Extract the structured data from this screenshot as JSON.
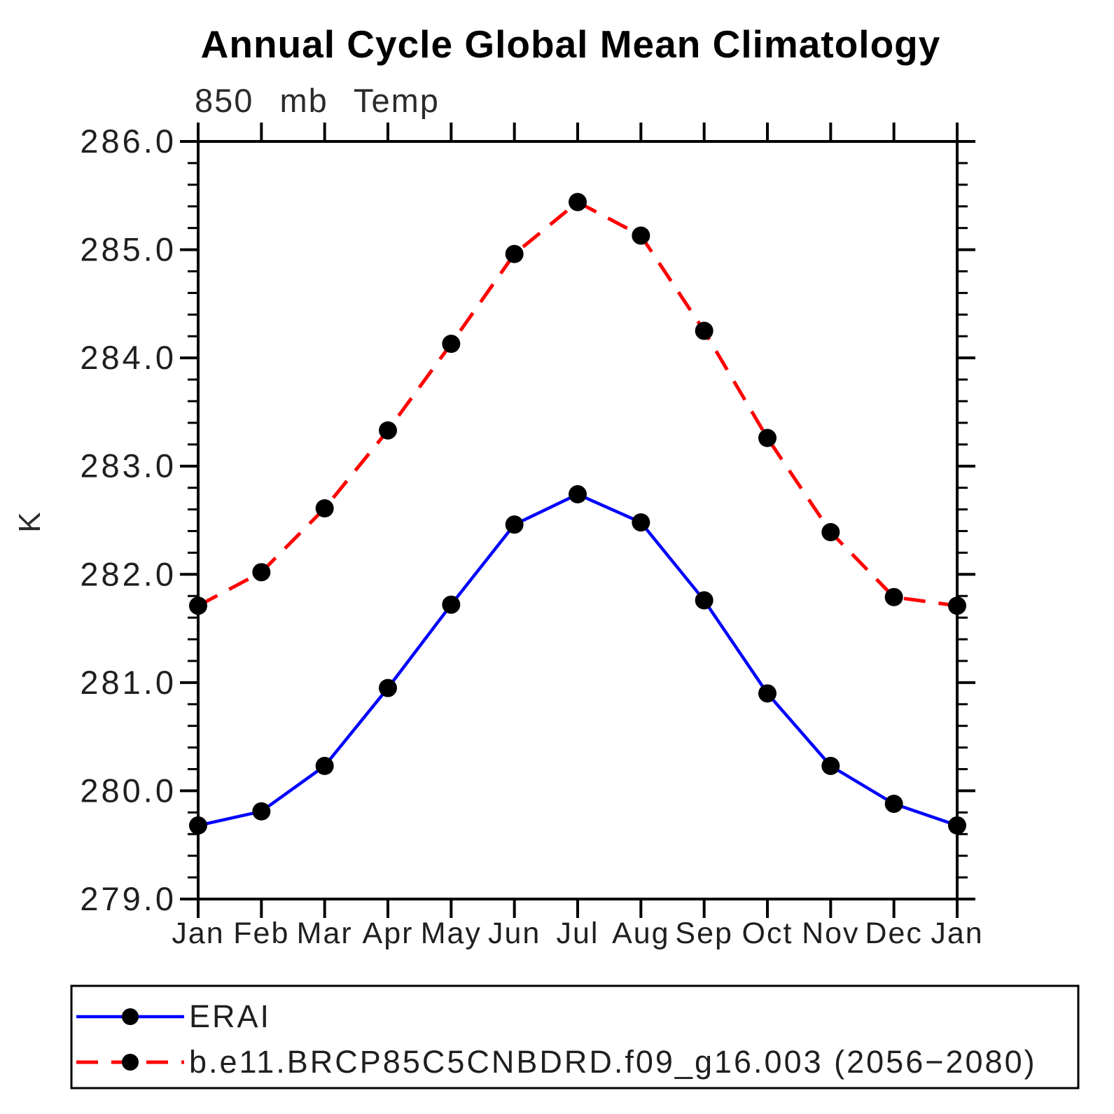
{
  "chart_data": {
    "type": "line",
    "title": "Annual Cycle Global Mean Climatology",
    "subtitle": "850 mb Temp",
    "ylabel": "K",
    "xlabel": "",
    "categories": [
      "Jan",
      "Feb",
      "Mar",
      "Apr",
      "May",
      "Jun",
      "Jul",
      "Aug",
      "Sep",
      "Oct",
      "Nov",
      "Dec",
      "Jan"
    ],
    "ylim": [
      279.0,
      286.0
    ],
    "ytick_major_step": 1.0,
    "ytick_minor_step": 0.2,
    "ytick_labels": [
      "286.0",
      "285.0",
      "284.0",
      "283.0",
      "282.0",
      "281.0",
      "280.0",
      "279.0"
    ],
    "grid": "off",
    "legend_position": "bottom-left-box",
    "marker": {
      "shape": "circle",
      "color": "#000000"
    },
    "series": [
      {
        "name": "ERAI",
        "color": "#0000ff",
        "line_style": "solid",
        "values": [
          279.68,
          279.81,
          280.23,
          280.95,
          281.72,
          282.46,
          282.74,
          282.48,
          281.76,
          280.9,
          280.23,
          279.88,
          279.68
        ]
      },
      {
        "name": "b.e11.BRCP85C5CNBDRD.f09_g16.003 (2056−2080)",
        "color": "#ff0000",
        "line_style": "dashed",
        "values": [
          281.71,
          282.02,
          282.61,
          283.33,
          284.13,
          284.96,
          285.44,
          285.13,
          284.25,
          283.26,
          282.39,
          281.79,
          281.71
        ]
      }
    ]
  }
}
